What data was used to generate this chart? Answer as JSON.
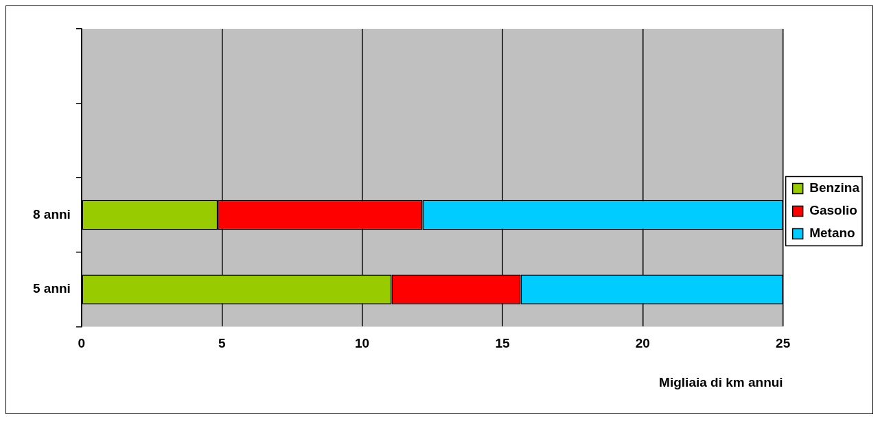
{
  "chart_data": {
    "type": "bar",
    "orientation": "horizontal",
    "stacked": true,
    "xlabel": "Migliaia di km annui",
    "categories": [
      null,
      null,
      "8 anni",
      "5 anni"
    ],
    "series": [
      {
        "name": "Benzina",
        "color": "#99cc00",
        "values": [
          null,
          null,
          4.85,
          11.05
        ]
      },
      {
        "name": "Gasolio",
        "color": "#ff0000",
        "values": [
          null,
          null,
          7.3,
          4.6
        ]
      },
      {
        "name": "Metano",
        "color": "#00ccff",
        "values": [
          null,
          null,
          12.85,
          9.35
        ]
      }
    ],
    "xlim": [
      0,
      25
    ],
    "xticks": [
      0,
      5,
      10,
      15,
      20,
      25
    ],
    "grid": "x",
    "legend": "right"
  }
}
